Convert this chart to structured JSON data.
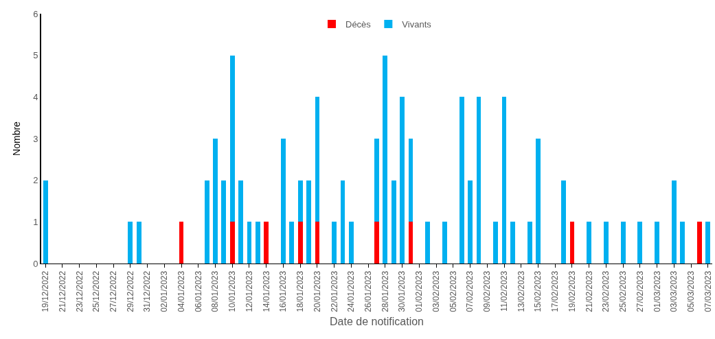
{
  "chart_data": {
    "type": "bar",
    "stacked": true,
    "xlabel": "Date de notification",
    "ylabel": "Nombre",
    "legend": "top",
    "ylim": [
      0,
      6
    ],
    "yticks": [
      0,
      1,
      2,
      3,
      4,
      5,
      6
    ],
    "categories": [
      "19/12/2022",
      null,
      "21/12/2022",
      null,
      "23/12/2022",
      null,
      "25/12/2022",
      null,
      "27/12/2022",
      null,
      "29/12/2022",
      null,
      "31/12/2022",
      null,
      "02/01/2023",
      null,
      "04/01/2023",
      null,
      "06/01/2023",
      null,
      "08/01/2023",
      null,
      "10/01/2023",
      null,
      "12/01/2023",
      null,
      "14/01/2023",
      null,
      "16/01/2023",
      null,
      "18/01/2023",
      null,
      "20/01/2023",
      null,
      "22/01/2023",
      null,
      "24/01/2023",
      null,
      "26/01/2023",
      null,
      "28/01/2023",
      null,
      "30/01/2023",
      null,
      "01/02/2023",
      null,
      "03/02/2023",
      null,
      "05/02/2023",
      null,
      "07/02/2023",
      null,
      "09/02/2023",
      null,
      "11/02/2023",
      null,
      "13/02/2023",
      null,
      "15/02/2023",
      null,
      "17/02/2023",
      null,
      "19/02/2023",
      null,
      "21/02/2023",
      null,
      "23/02/2023",
      null,
      "25/02/2023",
      null,
      "27/02/2023",
      null,
      "01/03/2023",
      null,
      "03/03/2023",
      null,
      "05/03/2023",
      null,
      "07/03/2023"
    ],
    "series": [
      {
        "name": "Décès",
        "color": "#ff0000",
        "values": [
          0,
          0,
          0,
          0,
          0,
          0,
          0,
          0,
          0,
          0,
          0,
          0,
          0,
          0,
          0,
          0,
          1,
          0,
          0,
          0,
          0,
          0,
          1,
          0,
          0,
          0,
          1,
          0,
          0,
          0,
          1,
          0,
          1,
          0,
          0,
          0,
          0,
          0,
          0,
          1,
          0,
          0,
          0,
          1,
          0,
          0,
          0,
          0,
          0,
          0,
          0,
          0,
          0,
          0,
          0,
          0,
          0,
          0,
          0,
          0,
          0,
          0,
          1,
          0,
          0,
          0,
          0,
          0,
          0,
          0,
          0,
          0,
          0,
          0,
          0,
          0,
          0,
          1,
          0
        ]
      },
      {
        "name": "Vivants",
        "color": "#00b0f0",
        "values": [
          2,
          0,
          0,
          0,
          0,
          0,
          0,
          0,
          0,
          0,
          1,
          1,
          0,
          0,
          0,
          0,
          0,
          0,
          0,
          2,
          3,
          2,
          4,
          2,
          1,
          1,
          0,
          0,
          3,
          1,
          1,
          2,
          3,
          0,
          1,
          2,
          1,
          0,
          0,
          2,
          5,
          2,
          4,
          2,
          0,
          1,
          0,
          1,
          0,
          4,
          2,
          4,
          0,
          1,
          4,
          1,
          0,
          1,
          3,
          0,
          0,
          2,
          0,
          0,
          1,
          0,
          1,
          0,
          1,
          0,
          1,
          0,
          1,
          0,
          2,
          1,
          0,
          0,
          1
        ]
      }
    ]
  }
}
